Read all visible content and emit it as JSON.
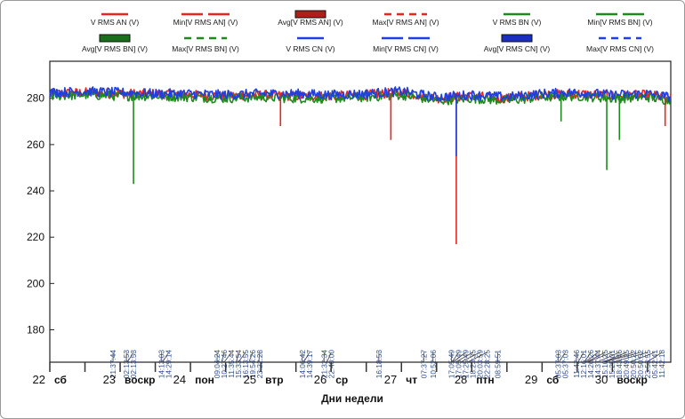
{
  "chart_data": {
    "type": "line",
    "title": "",
    "xlabel": "Дни недели",
    "ylabel": "",
    "xlim": [
      22,
      30.83
    ],
    "ylim": [
      166,
      296
    ],
    "yticks": [
      180,
      200,
      220,
      240,
      260,
      280
    ],
    "grid": false,
    "legend_position": "top",
    "legend": [
      {
        "label": "V RMS AN (V)",
        "color": "#e8261f",
        "style": "solid"
      },
      {
        "label": "Min[V RMS AN] (V)",
        "color": "#e8261f",
        "style": "long-dash"
      },
      {
        "label": "Avg[V RMS AN] (V)",
        "color": "#b01e1a",
        "style": "box"
      },
      {
        "label": "Max[V RMS AN] (V)",
        "color": "#e8261f",
        "style": "dash"
      },
      {
        "label": "V RMS BN (V)",
        "color": "#1e8a1e",
        "style": "solid"
      },
      {
        "label": "Min[V RMS BN] (V)",
        "color": "#1e8a1e",
        "style": "long-dash"
      },
      {
        "label": "Avg[V RMS BN] (V)",
        "color": "#1b6e1b",
        "style": "box"
      },
      {
        "label": "Max[V RMS BN] (V)",
        "color": "#1e8a1e",
        "style": "dash"
      },
      {
        "label": "V RMS CN (V)",
        "color": "#1f3fe0",
        "style": "solid"
      },
      {
        "label": "Min[V RMS CN] (V)",
        "color": "#1f3fe0",
        "style": "long-dash"
      },
      {
        "label": "Avg[V RMS CN] (V)",
        "color": "#1a2fbf",
        "style": "box"
      },
      {
        "label": "Max[V RMS CN] (V)",
        "color": "#1f3fe0",
        "style": "dash"
      }
    ],
    "series": [
      {
        "name": "V RMS AN (V)",
        "color": "#e8261f",
        "x": [
          22,
          22.5,
          23,
          23.5,
          24,
          24.5,
          25,
          25.5,
          26,
          26.5,
          27,
          27.5,
          28,
          28.5,
          29,
          29.5,
          30,
          30.5,
          30.83
        ],
        "y": [
          282,
          282.5,
          282,
          282,
          281.5,
          281,
          281.5,
          281,
          281,
          281.5,
          282.5,
          280,
          281,
          280,
          281.5,
          282,
          281,
          281.5,
          280
        ]
      },
      {
        "name": "V RMS BN (V)",
        "color": "#1e8a1e",
        "x": [
          22,
          22.5,
          23,
          23.5,
          24,
          24.5,
          25,
          25.5,
          26,
          26.5,
          27,
          27.5,
          28,
          28.5,
          29,
          29.5,
          30,
          30.5,
          30.83
        ],
        "y": [
          281,
          281.5,
          281,
          281,
          280.5,
          280,
          280.5,
          280,
          280,
          280.5,
          281.5,
          279,
          280,
          279,
          280.5,
          281,
          280,
          280.5,
          279
        ]
      },
      {
        "name": "V RMS CN (V)",
        "color": "#1f3fe0",
        "x": [
          22,
          22.5,
          23,
          23.5,
          24,
          24.5,
          25,
          25.5,
          26,
          26.5,
          27,
          27.5,
          28,
          28.5,
          29,
          29.5,
          30,
          30.5,
          30.83
        ],
        "y": [
          282.5,
          283,
          282.5,
          282,
          282,
          281.5,
          282,
          282,
          281.5,
          282,
          283,
          280.5,
          281.5,
          280.5,
          282,
          282.5,
          281.5,
          282,
          280.5
        ]
      }
    ],
    "dips": [
      {
        "x": 23.19,
        "min": 243,
        "color": "#1e8a1e"
      },
      {
        "x": 25.28,
        "min": 268,
        "color": "#e8261f"
      },
      {
        "x": 26.85,
        "min": 262,
        "color": "#e8261f"
      },
      {
        "x": 27.78,
        "min": 217,
        "color": "#e8261f"
      },
      {
        "x": 27.78,
        "min": 255,
        "color": "#1f3fe0"
      },
      {
        "x": 29.27,
        "min": 270,
        "color": "#1e8a1e"
      },
      {
        "x": 29.92,
        "min": 249,
        "color": "#1e8a1e"
      },
      {
        "x": 30.1,
        "min": 262,
        "color": "#1e8a1e"
      },
      {
        "x": 30.75,
        "min": 268,
        "color": "#e8261f"
      }
    ],
    "x_ticks": [
      {
        "value": 22,
        "num": "22",
        "day": "сб"
      },
      {
        "value": 23,
        "num": "23",
        "day": "воскр"
      },
      {
        "value": 24,
        "num": "24",
        "day": "пон"
      },
      {
        "value": 25,
        "num": "25",
        "day": "втр"
      },
      {
        "value": 26,
        "num": "26",
        "day": "ср"
      },
      {
        "value": 27,
        "num": "27",
        "day": "чт"
      },
      {
        "value": 28,
        "num": "28",
        "day": "птн"
      },
      {
        "value": 29,
        "num": "29",
        "day": "сб"
      },
      {
        "value": 30,
        "num": "30",
        "day": "воскр"
      }
    ],
    "annotations": [
      {
        "label": "21:37:44",
        "x": 22.9
      },
      {
        "label": "02:13:53",
        "x": 23.09
      },
      {
        "label": "02:13:53",
        "x": 23.1
      },
      {
        "label": "14:13:03",
        "x": 23.59
      },
      {
        "label": "14:29:14",
        "x": 23.6
      },
      {
        "label": "09:04:24",
        "x": 24.38
      },
      {
        "label": "10:27:46",
        "x": 24.44
      },
      {
        "label": "11:35:44",
        "x": 24.48
      },
      {
        "label": "15:33:54",
        "x": 24.65
      },
      {
        "label": "16:13:55",
        "x": 24.68
      },
      {
        "label": "19:54:26",
        "x": 24.83
      },
      {
        "label": "23:22:28",
        "x": 24.97
      },
      {
        "label": "14:06:42",
        "x": 25.59
      },
      {
        "label": "14:39:17",
        "x": 25.61
      },
      {
        "label": "21:32:34",
        "x": 25.9
      },
      {
        "label": "22:40:00",
        "x": 25.94
      },
      {
        "label": "16:18:53",
        "x": 26.68
      },
      {
        "label": "07:37:27",
        "x": 27.32
      },
      {
        "label": "10:52:06",
        "x": 27.45
      },
      {
        "label": "17:05:49",
        "x": 27.71
      },
      {
        "label": "17:05:49",
        "x": 27.72
      },
      {
        "label": "17:25:49",
        "x": 27.73
      },
      {
        "label": "18:23:35",
        "x": 27.77
      },
      {
        "label": "20:03:59",
        "x": 27.84
      },
      {
        "label": "22:28:25",
        "x": 27.94
      },
      {
        "label": "08:59:51",
        "x": 28.37
      },
      {
        "label": "05:37:03",
        "x": 29.23
      },
      {
        "label": "05:37:03",
        "x": 29.24
      },
      {
        "label": "11:42:46",
        "x": 29.49
      },
      {
        "label": "12:16:01",
        "x": 29.51
      },
      {
        "label": "14:26:26",
        "x": 29.6
      },
      {
        "label": "14:37:44",
        "x": 29.61
      },
      {
        "label": "15:10:25",
        "x": 29.63
      },
      {
        "label": "15:25:01",
        "x": 29.64
      },
      {
        "label": "18:43:46",
        "x": 29.78
      },
      {
        "label": "20:49:25",
        "x": 29.87
      },
      {
        "label": "20:50:22",
        "x": 29.87
      },
      {
        "label": "20:50:52",
        "x": 29.87
      },
      {
        "label": "23:53:55",
        "x": 30.0
      },
      {
        "label": "05:42:41",
        "x": 30.24
      },
      {
        "label": "11:42:18",
        "x": 30.49
      }
    ]
  }
}
